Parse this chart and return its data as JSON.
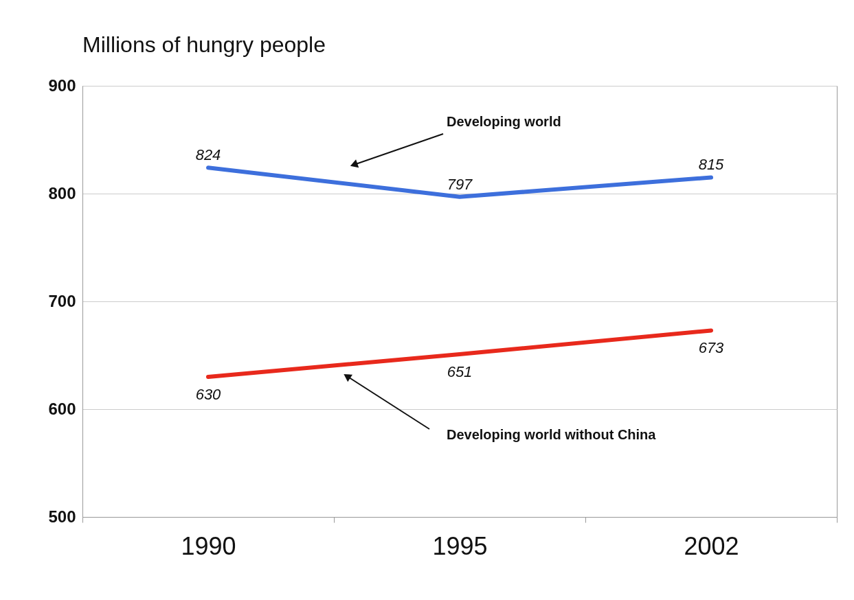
{
  "chart_data": {
    "type": "line",
    "title": "Millions of hungry people",
    "categories": [
      "1990",
      "1995",
      "2002"
    ],
    "series": [
      {
        "name": "Developing world",
        "color": "#3d6fdc",
        "values": [
          824,
          797,
          815
        ]
      },
      {
        "name": "Developing world without China",
        "color": "#e8291c",
        "values": [
          630,
          651,
          673
        ]
      }
    ],
    "ylim": [
      500,
      900
    ],
    "yticks": [
      500,
      600,
      700,
      800,
      900
    ],
    "grid": "y",
    "data_labels": true
  }
}
